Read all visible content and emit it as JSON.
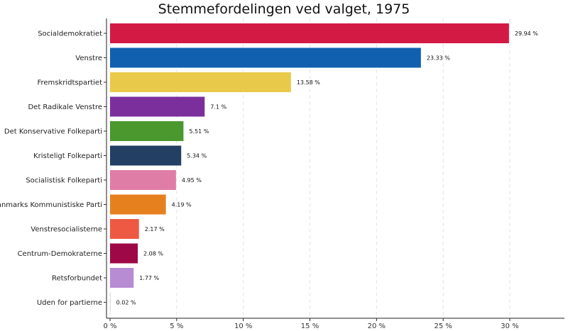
{
  "chart_data": {
    "type": "bar",
    "orientation": "horizontal",
    "title": "Stemmefordelingen ved valget, 1975",
    "xlabel": "",
    "ylabel": "",
    "xlim": [
      0,
      34
    ],
    "x_ticks": [
      0,
      5,
      10,
      15,
      20,
      25,
      30
    ],
    "x_tick_labels": [
      "0 %",
      "5 %",
      "10 %",
      "15 %",
      "20 %",
      "25 %",
      "30 %"
    ],
    "grid": "vertical dashed",
    "legend": "none",
    "categories": [
      "Socialdemokratiet",
      "Venstre",
      "Fremskridtspartiet",
      "Det Radikale Venstre",
      "Det Konservative Folkeparti",
      "Kristeligt Folkeparti",
      "Socialistisk Folkeparti",
      "Danmarks Kommunistiske Parti",
      "Venstresocialisterne",
      "Centrum-Demokraterne",
      "Retsforbundet",
      "Uden for partierne"
    ],
    "values": [
      29.94,
      23.33,
      13.58,
      7.1,
      5.51,
      5.34,
      4.95,
      4.19,
      2.17,
      2.08,
      1.77,
      0.02
    ],
    "value_labels": [
      "29.94 %",
      "23.33 %",
      "13.58 %",
      "7.1 %",
      "5.51 %",
      "5.34 %",
      "4.95 %",
      "4.19 %",
      "2.17 %",
      "2.08 %",
      "1.77 %",
      "0.02 %"
    ],
    "colors": [
      "#D31A45",
      "#1160B0",
      "#E9C94A",
      "#7B2F9C",
      "#4A982E",
      "#233F63",
      "#E07DA7",
      "#E6801E",
      "#EE5943",
      "#9E0846",
      "#B88CD3",
      "#C9C9C9"
    ]
  }
}
